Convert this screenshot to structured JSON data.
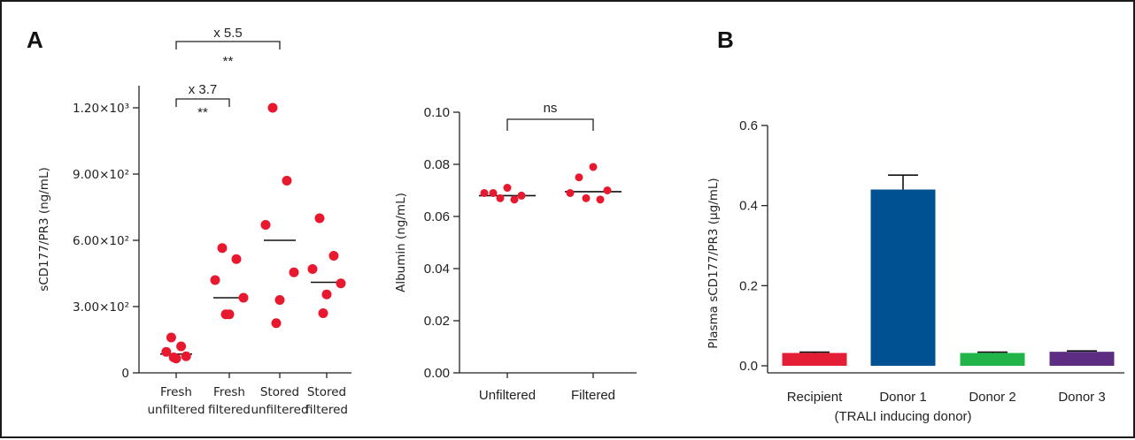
{
  "panels": {
    "a_label": "A",
    "b_label": "B"
  },
  "chart_data": [
    {
      "id": "a1",
      "type": "scatter",
      "ylabel": "sCD177/PR3 (ng/mL)",
      "ylim": [
        0,
        1300
      ],
      "yticks": [
        {
          "value": 0,
          "label": "0"
        },
        {
          "value": 300,
          "label": "3.00×10²"
        },
        {
          "value": 600,
          "label": "6.00×10²"
        },
        {
          "value": 900,
          "label": "9.00×10²"
        },
        {
          "value": 1200,
          "label": "1.20×10³"
        }
      ],
      "categories": [
        {
          "line1": "Fresh",
          "line2": "unfiltered"
        },
        {
          "line1": "Fresh",
          "line2": "filtered"
        },
        {
          "line1": "Stored",
          "line2": "unfiltered"
        },
        {
          "line1": "Stored",
          "line2": "filtered"
        }
      ],
      "groups": [
        {
          "mean": 85,
          "points": [
            160,
            120,
            95,
            75,
            65,
            70
          ]
        },
        {
          "mean": 340,
          "points": [
            565,
            515,
            420,
            340,
            265,
            265
          ]
        },
        {
          "mean": 600,
          "points": [
            1200,
            870,
            670,
            455,
            330,
            225
          ]
        },
        {
          "mean": 410,
          "points": [
            700,
            530,
            470,
            405,
            355,
            270
          ]
        }
      ],
      "brackets": [
        {
          "from": 0,
          "to": 2,
          "text": "x 5.5",
          "stars": "**"
        },
        {
          "from": 0,
          "to": 1,
          "text": "x 3.7",
          "stars": "**"
        }
      ],
      "point_color": "#e8192f"
    },
    {
      "id": "a2",
      "type": "scatter",
      "ylabel": "Albumin (ng/mL)",
      "ylim": [
        0,
        0.1
      ],
      "yticks": [
        {
          "value": 0,
          "label": "0.00"
        },
        {
          "value": 0.02,
          "label": "0.02"
        },
        {
          "value": 0.04,
          "label": "0.04"
        },
        {
          "value": 0.06,
          "label": "0.06"
        },
        {
          "value": 0.08,
          "label": "0.08"
        },
        {
          "value": 0.1,
          "label": "0.10"
        }
      ],
      "categories": [
        {
          "line1": "Unfiltered"
        },
        {
          "line1": "Filtered"
        }
      ],
      "groups": [
        {
          "mean": 0.068,
          "points": [
            0.071,
            0.069,
            0.068,
            0.069,
            0.067,
            0.0665
          ]
        },
        {
          "mean": 0.0695,
          "points": [
            0.079,
            0.075,
            0.07,
            0.069,
            0.067,
            0.0665
          ]
        }
      ],
      "brackets": [
        {
          "from": 0,
          "to": 1,
          "text": "ns",
          "stars": ""
        }
      ],
      "point_color": "#e8192f"
    },
    {
      "id": "b",
      "type": "bar",
      "ylabel": "Plasma sCD177/PR3 (μg/mL)",
      "ylim": [
        0,
        0.6
      ],
      "yticks": [
        {
          "value": 0,
          "label": "0.0"
        },
        {
          "value": 0.2,
          "label": "0.2"
        },
        {
          "value": 0.4,
          "label": "0.4"
        },
        {
          "value": 0.6,
          "label": "0.6"
        }
      ],
      "categories": [
        {
          "line1": "Recipient",
          "line2": ""
        },
        {
          "line1": "Donor 1",
          "line2": "(TRALI inducing donor)"
        },
        {
          "line1": "Donor 2",
          "line2": ""
        },
        {
          "line1": "Donor 3",
          "line2": ""
        }
      ],
      "values": [
        0.032,
        0.44,
        0.032,
        0.035
      ],
      "errors": [
        0.002,
        0.036,
        0.002,
        0.002
      ],
      "colors": [
        "#e41e35",
        "#005192",
        "#22b448",
        "#5c2d82"
      ]
    }
  ]
}
